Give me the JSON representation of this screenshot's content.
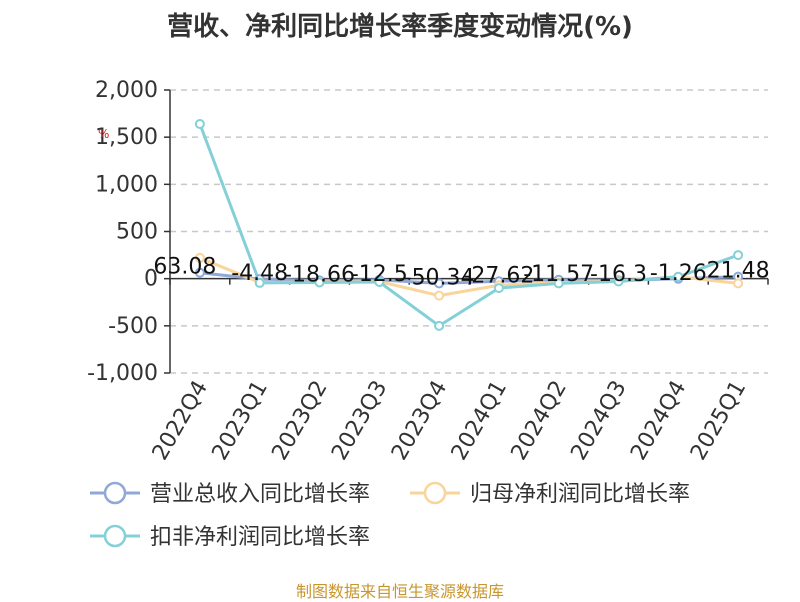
{
  "chart_data": {
    "type": "line",
    "title": "营收、净利同比增长率季度变动情况(%)",
    "categories": [
      "2022Q4",
      "2023Q1",
      "2023Q2",
      "2023Q3",
      "2023Q4",
      "2024Q1",
      "2024Q2",
      "2024Q3",
      "2024Q4",
      "2025Q1"
    ],
    "yticks": [
      "2,000",
      "1,500",
      "1,000",
      "500",
      "0",
      "-500",
      "-1,000"
    ],
    "ylim": [
      -1000,
      2000
    ],
    "grid": "horizontal dashed",
    "legend_position": "bottom-left",
    "series": [
      {
        "name": "营业总收入同比增长率",
        "color": "#8fa8d8",
        "values": [
          63.08,
          -4.48,
          -18.66,
          -12.5,
          -50.34,
          -27.62,
          -11.57,
          -16.3,
          -1.26,
          21.48
        ],
        "labels": [
          "63.08",
          "-4.48",
          "-18.66",
          "-12.5",
          "-50.34",
          "-27.62",
          "-11.57",
          "-16.3",
          "-1.26",
          "21.48"
        ]
      },
      {
        "name": "归母净利润同比增长率",
        "color": "#f9d49b",
        "values": [
          220,
          -40,
          -35,
          -30,
          -180,
          -70,
          -40,
          -25,
          20,
          -50
        ]
      },
      {
        "name": "扣非净利润同比增长率",
        "color": "#84d0d8",
        "values": [
          1640,
          -45,
          -40,
          -35,
          -500,
          -100,
          -50,
          -30,
          20,
          250
        ]
      }
    ],
    "annotation": {
      "text": "%",
      "color": "#e02020"
    }
  },
  "source": "制图数据来自恒生聚源数据库"
}
